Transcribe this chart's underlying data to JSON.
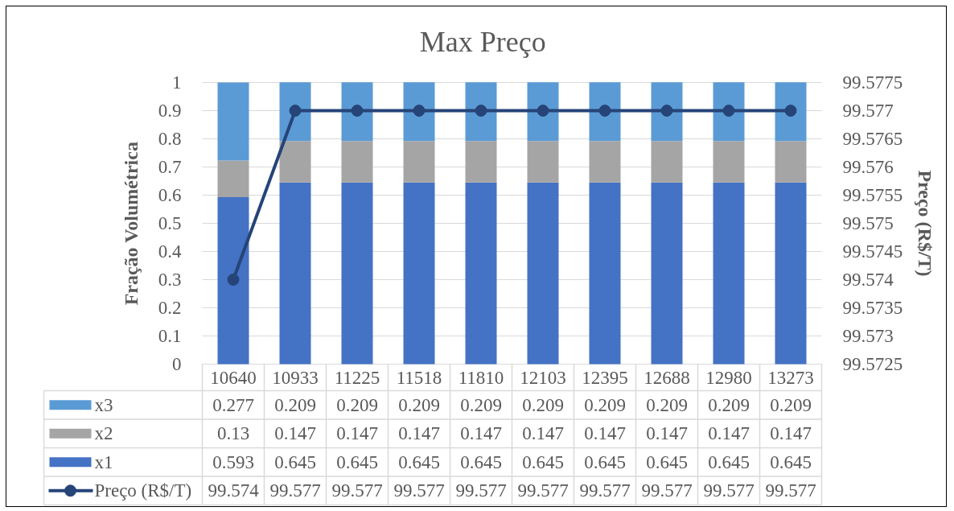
{
  "chart_data": {
    "type": "bar",
    "stacked": true,
    "title": "Max Preço",
    "ylabel": "Fração Volumétrica",
    "y2label": "Preço (R$/T)",
    "categories": [
      "10640",
      "10933",
      "11225",
      "11518",
      "11810",
      "12103",
      "12395",
      "12688",
      "12980",
      "13273"
    ],
    "series": [
      {
        "name": "x1",
        "color": "#4472c4",
        "values": [
          0.593,
          0.645,
          0.645,
          0.645,
          0.645,
          0.645,
          0.645,
          0.645,
          0.645,
          0.645
        ]
      },
      {
        "name": "x2",
        "color": "#a5a5a5",
        "values": [
          0.13,
          0.147,
          0.147,
          0.147,
          0.147,
          0.147,
          0.147,
          0.147,
          0.147,
          0.147
        ]
      },
      {
        "name": "x3",
        "color": "#5b9bd5",
        "values": [
          0.277,
          0.209,
          0.209,
          0.209,
          0.209,
          0.209,
          0.209,
          0.209,
          0.209,
          0.209
        ]
      },
      {
        "name": "Preço (R$/T)",
        "type": "line",
        "axis": "y2",
        "color": "#264478",
        "values": [
          99.574,
          99.577,
          99.577,
          99.577,
          99.577,
          99.577,
          99.577,
          99.577,
          99.577,
          99.577
        ]
      }
    ],
    "ylim": [
      0,
      1
    ],
    "yticks": [
      0,
      0.1,
      0.2,
      0.3,
      0.4,
      0.5,
      0.6,
      0.7,
      0.8,
      0.9,
      1
    ],
    "y2lim": [
      99.5725,
      99.5775
    ],
    "y2ticks": [
      99.5725,
      99.573,
      99.5735,
      99.574,
      99.5745,
      99.575,
      99.5755,
      99.576,
      99.5765,
      99.577,
      99.5775
    ],
    "grid": "y",
    "legend": "bottom",
    "data_labels": true,
    "marker": "circle",
    "line_style": "solid"
  }
}
